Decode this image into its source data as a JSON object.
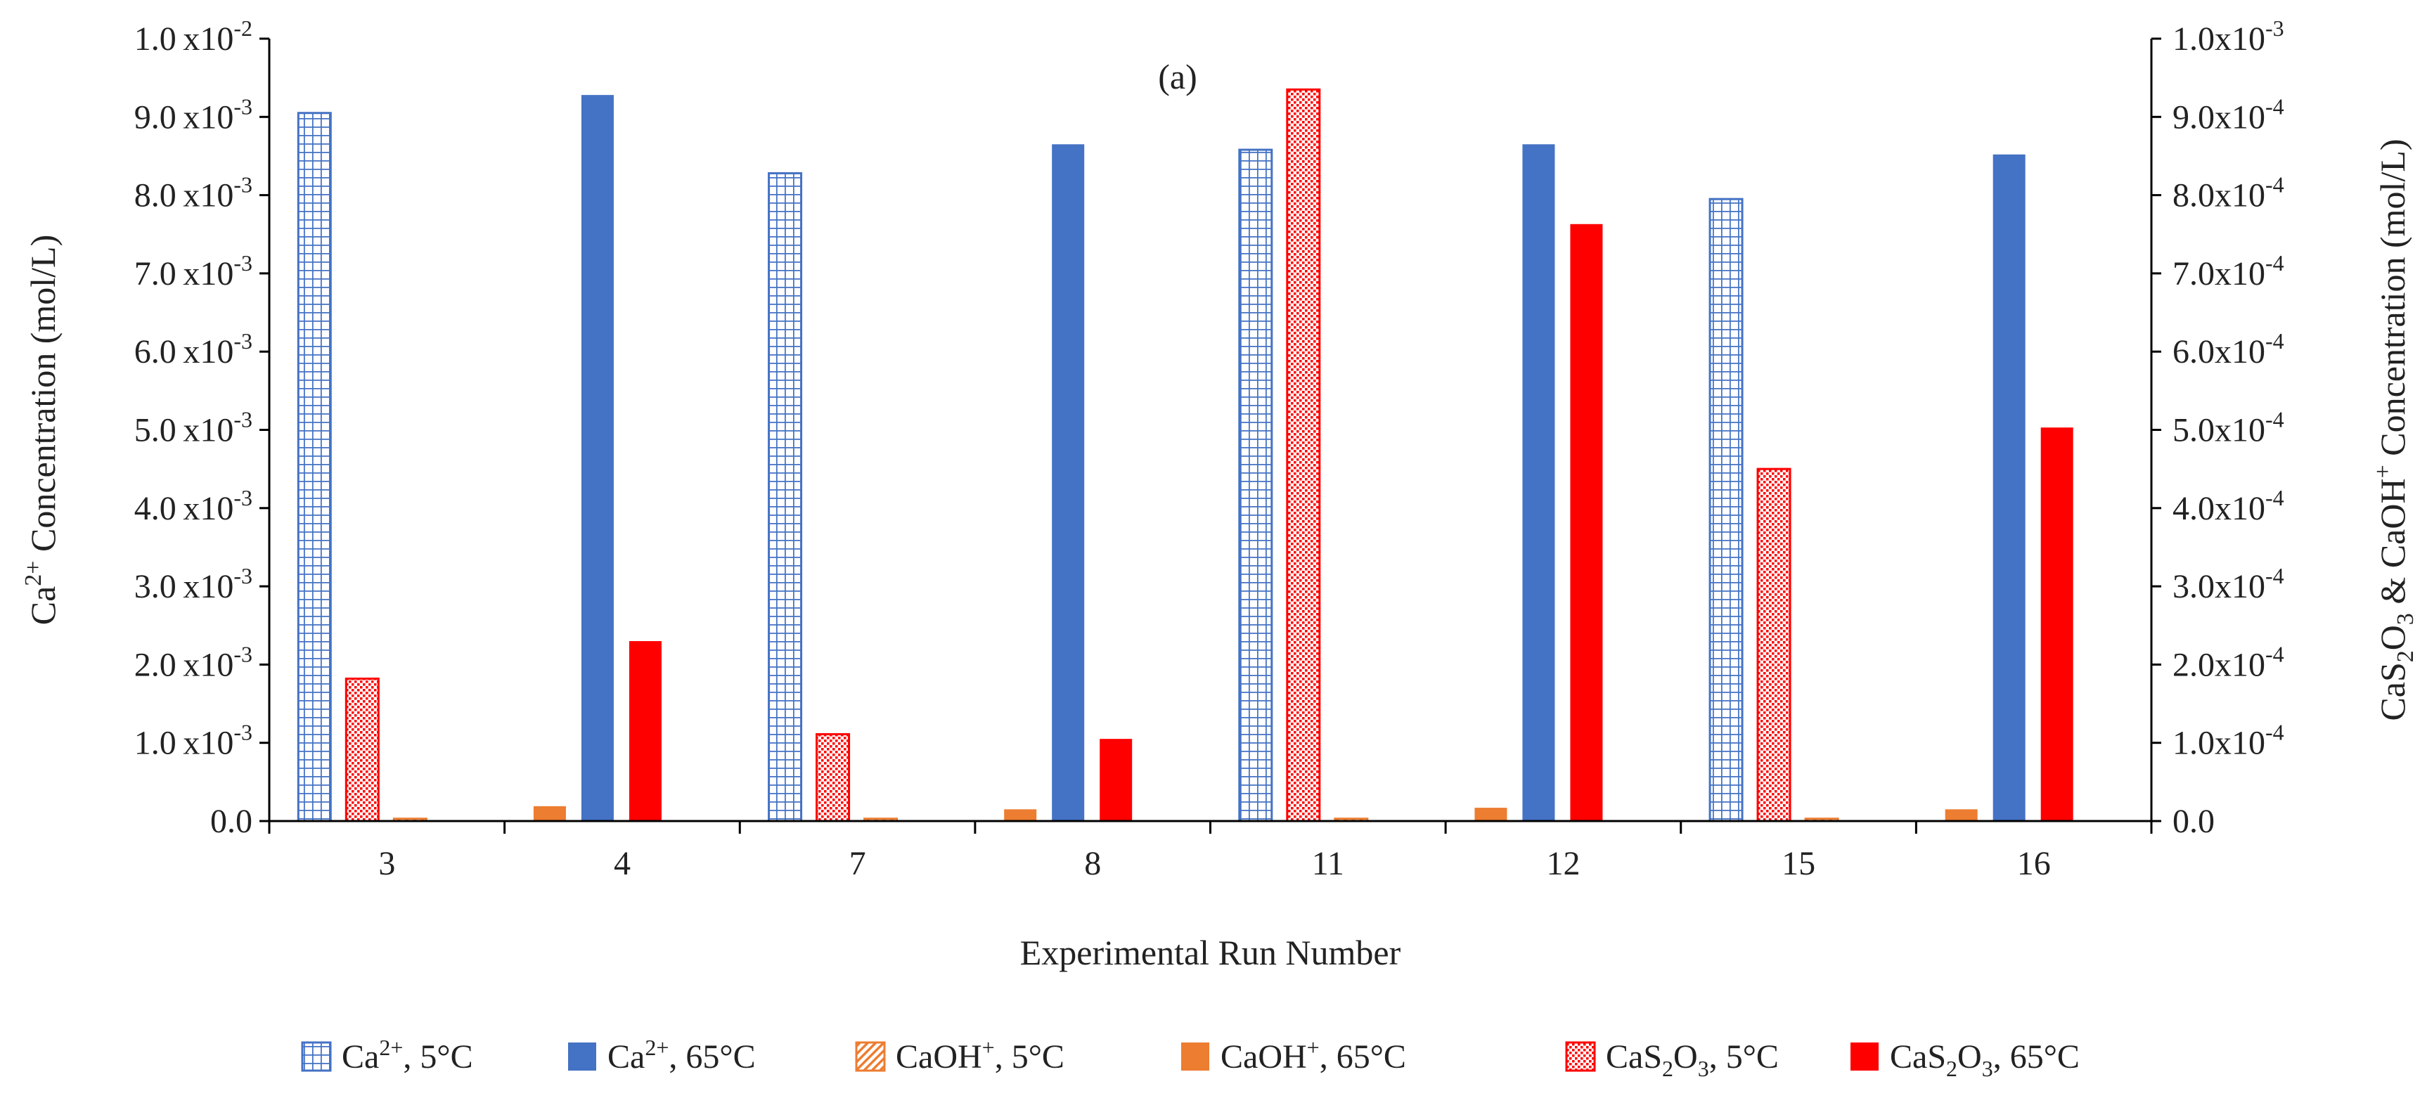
{
  "chart_data": {
    "type": "bar",
    "panel_label": "(a)",
    "xlabel": "Experimental Run Number",
    "ylabel_left": {
      "prefix": "Ca",
      "sup": "2+",
      "suffix": " Concentration (mol/L)"
    },
    "ylabel_right": {
      "p1": "CaS",
      "s1": "2",
      "p2": "O",
      "s2": "3",
      "p3": " & CaOH",
      "sup": "+",
      "p4": " Concentration (mol/L)"
    },
    "categories": [
      "3",
      "4",
      "7",
      "8",
      "11",
      "12",
      "15",
      "16"
    ],
    "ylim_left": [
      0,
      0.01
    ],
    "ylim_right": [
      0,
      0.001
    ],
    "left_ticks": [
      {
        "value": 0,
        "mant": "0.0",
        "exp": ""
      },
      {
        "value": 0.001,
        "mant": "1.0",
        "exp": "-3"
      },
      {
        "value": 0.002,
        "mant": "2.0",
        "exp": "-3"
      },
      {
        "value": 0.003,
        "mant": "3.0",
        "exp": "-3"
      },
      {
        "value": 0.004,
        "mant": "4.0",
        "exp": "-3"
      },
      {
        "value": 0.005,
        "mant": "5.0",
        "exp": "-3"
      },
      {
        "value": 0.006,
        "mant": "6.0",
        "exp": "-3"
      },
      {
        "value": 0.007,
        "mant": "7.0",
        "exp": "-3"
      },
      {
        "value": 0.008,
        "mant": "8.0",
        "exp": "-3"
      },
      {
        "value": 0.009,
        "mant": "9.0",
        "exp": "-3"
      },
      {
        "value": 0.01,
        "mant": "1.0",
        "exp": "-2"
      }
    ],
    "right_ticks": [
      {
        "value": 0,
        "mant": "0.0",
        "exp": ""
      },
      {
        "value": 0.0001,
        "mant": "1.0",
        "exp": "-4"
      },
      {
        "value": 0.0002,
        "mant": "2.0",
        "exp": "-4"
      },
      {
        "value": 0.0003,
        "mant": "3.0",
        "exp": "-4"
      },
      {
        "value": 0.0004,
        "mant": "4.0",
        "exp": "-4"
      },
      {
        "value": 0.0005,
        "mant": "5.0",
        "exp": "-4"
      },
      {
        "value": 0.0006,
        "mant": "6.0",
        "exp": "-4"
      },
      {
        "value": 0.0007,
        "mant": "7.0",
        "exp": "-4"
      },
      {
        "value": 0.0008,
        "mant": "8.0",
        "exp": "-4"
      },
      {
        "value": 0.0009,
        "mant": "9.0",
        "exp": "-4"
      },
      {
        "value": 0.001,
        "mant": "1.0",
        "exp": "-3"
      }
    ],
    "grid": false,
    "legend_position": "bottom",
    "series": [
      {
        "name": "Ca²⁺, 5°C",
        "legend": {
          "main": "Ca",
          "sup": "2+",
          "suffix": ", 5°C"
        },
        "axis": "left",
        "pattern": "grid",
        "color": "#4472C4",
        "values": [
          0.00905,
          null,
          0.00828,
          null,
          0.00858,
          null,
          0.00795,
          null
        ]
      },
      {
        "name": "Ca²⁺, 65°C",
        "legend": {
          "main": "Ca",
          "sup": "2+",
          "suffix": ", 65°C"
        },
        "axis": "left",
        "pattern": "solid",
        "color": "#4472C4",
        "values": [
          null,
          0.00928,
          null,
          0.00865,
          null,
          0.00865,
          null,
          0.00852
        ]
      },
      {
        "name": "CaOH⁺, 5°C",
        "legend": {
          "main": "CaOH",
          "sup": "+",
          "suffix": ", 5°C"
        },
        "axis": "right",
        "pattern": "hatch",
        "color": "#ED7D31",
        "values": [
          3e-06,
          null,
          3e-06,
          null,
          3e-06,
          null,
          3e-06,
          null
        ]
      },
      {
        "name": "CaOH⁺, 65°C",
        "legend": {
          "main": "CaOH",
          "sup": "+",
          "suffix": ", 65°C"
        },
        "axis": "right",
        "pattern": "solid",
        "color": "#ED7D31",
        "values": [
          null,
          1.9e-05,
          null,
          1.5e-05,
          null,
          1.7e-05,
          null,
          1.5e-05
        ]
      },
      {
        "name": "CaS₂O₃, 5°C",
        "legend": {
          "main": "CaS",
          "sub1": "2",
          "mid": "O",
          "sub2": "3",
          "suffix": ", 5°C"
        },
        "axis": "right",
        "pattern": "dotted",
        "color": "#FF0000",
        "values": [
          0.000182,
          null,
          0.000111,
          null,
          0.000935,
          null,
          0.00045,
          null
        ]
      },
      {
        "name": "CaS₂O₃, 65°C",
        "legend": {
          "main": "CaS",
          "sub1": "2",
          "mid": "O",
          "sub2": "3",
          "suffix": ", 65°C"
        },
        "axis": "right",
        "pattern": "solid",
        "color": "#FF0000",
        "values": [
          null,
          0.00023,
          null,
          0.000105,
          null,
          0.000763,
          null,
          0.000503
        ]
      }
    ]
  }
}
